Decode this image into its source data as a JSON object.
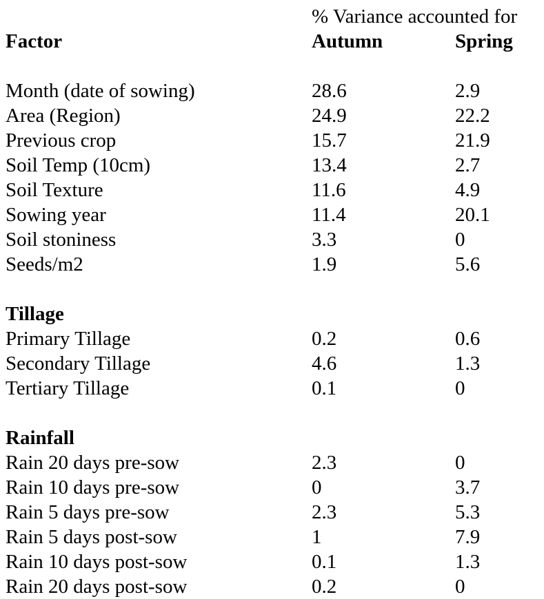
{
  "table": {
    "header": {
      "variance_title": "% Variance accounted for",
      "factor_col": "Factor",
      "autumn_col": "Autumn",
      "spring_col": "Spring"
    },
    "sections": [
      {
        "title": "",
        "rows": [
          {
            "factor": "Month (date of sowing)",
            "autumn": "28.6",
            "spring": "2.9"
          },
          {
            "factor": "Area (Region)",
            "autumn": "24.9",
            "spring": "22.2"
          },
          {
            "factor": "Previous crop",
            "autumn": "15.7",
            "spring": "21.9"
          },
          {
            "factor": "Soil Temp (10cm)",
            "autumn": "13.4",
            "spring": "2.7"
          },
          {
            "factor": "Soil Texture",
            "autumn": "11.6",
            "spring": "4.9"
          },
          {
            "factor": "Sowing year",
            "autumn": "11.4",
            "spring": "20.1"
          },
          {
            "factor": "Soil stoniness",
            "autumn": "3.3",
            "spring": "0"
          },
          {
            "factor": "Seeds/m2",
            "autumn": "1.9",
            "spring": "5.6"
          }
        ]
      },
      {
        "title": "Tillage",
        "rows": [
          {
            "factor": "Primary Tillage",
            "autumn": "0.2",
            "spring": "0.6"
          },
          {
            "factor": "Secondary Tillage",
            "autumn": "4.6",
            "spring": "1.3"
          },
          {
            "factor": "Tertiary Tillage",
            "autumn": "0.1",
            "spring": "0"
          }
        ]
      },
      {
        "title": "Rainfall",
        "rows": [
          {
            "factor": "Rain 20 days pre-sow",
            "autumn": "2.3",
            "spring": "0"
          },
          {
            "factor": "Rain 10 days pre-sow",
            "autumn": "0",
            "spring": "3.7"
          },
          {
            "factor": "Rain 5 days pre-sow",
            "autumn": "2.3",
            "spring": "5.3"
          },
          {
            "factor": "Rain 5 days post-sow",
            "autumn": "1",
            "spring": "7.9"
          },
          {
            "factor": "Rain 10 days post-sow",
            "autumn": "0.1",
            "spring": "1.3"
          },
          {
            "factor": "Rain 20 days post-sow",
            "autumn": "0.2",
            "spring": "0"
          }
        ]
      }
    ]
  }
}
